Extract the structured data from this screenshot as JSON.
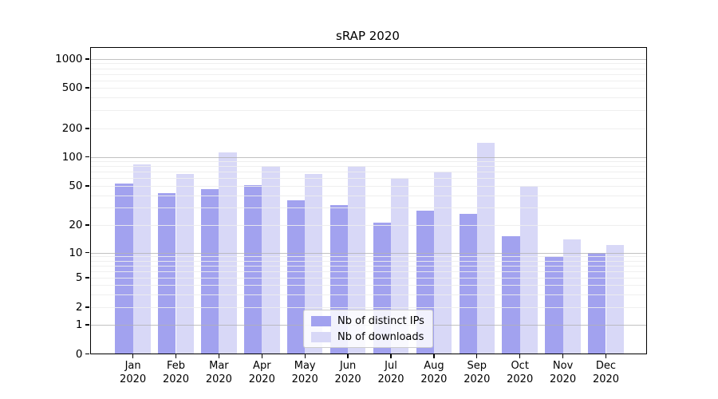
{
  "title": "sRAP 2020",
  "colors": {
    "ips_bar": "#a2a2ef",
    "downloads_bar": "#d8d8f7",
    "grid_major": "#b3b3b3",
    "grid_minor": "#ededed",
    "axis": "#000000",
    "legend_border": "#cccccc",
    "background": "#ffffff"
  },
  "legend": {
    "items": [
      {
        "label": "Nb of distinct IPs",
        "color_key": "ips_bar"
      },
      {
        "label": "Nb of downloads",
        "color_key": "downloads_bar"
      }
    ]
  },
  "y_axis": {
    "tick_labels": [
      "0",
      "1",
      "2",
      "5",
      "10",
      "20",
      "50",
      "100",
      "200",
      "500",
      "1000"
    ],
    "tick_values": [
      0,
      1,
      2,
      5,
      10,
      20,
      50,
      100,
      200,
      500,
      1000
    ]
  },
  "x_axis": {
    "categories": [
      {
        "month": "Jan",
        "year": "2020"
      },
      {
        "month": "Feb",
        "year": "2020"
      },
      {
        "month": "Mar",
        "year": "2020"
      },
      {
        "month": "Apr",
        "year": "2020"
      },
      {
        "month": "May",
        "year": "2020"
      },
      {
        "month": "Jun",
        "year": "2020"
      },
      {
        "month": "Jul",
        "year": "2020"
      },
      {
        "month": "Aug",
        "year": "2020"
      },
      {
        "month": "Sep",
        "year": "2020"
      },
      {
        "month": "Oct",
        "year": "2020"
      },
      {
        "month": "Nov",
        "year": "2020"
      },
      {
        "month": "Dec",
        "year": "2020"
      }
    ]
  },
  "chart_data": {
    "type": "bar",
    "title": "sRAP 2020",
    "xlabel": "",
    "ylabel": "",
    "y_scale": "symlog",
    "ylim": [
      0,
      1000
    ],
    "grid": true,
    "legend_position": "lower-center-inside",
    "categories": [
      "Jan 2020",
      "Feb 2020",
      "Mar 2020",
      "Apr 2020",
      "May 2020",
      "Jun 2020",
      "Jul 2020",
      "Aug 2020",
      "Sep 2020",
      "Oct 2020",
      "Nov 2020",
      "Dec 2020"
    ],
    "series": [
      {
        "name": "Nb of distinct IPs",
        "values": [
          53,
          42,
          46,
          51,
          36,
          32,
          21,
          28,
          26,
          15,
          9,
          10
        ]
      },
      {
        "name": "Nb of downloads",
        "values": [
          84,
          66,
          112,
          81,
          66,
          81,
          60,
          71,
          142,
          50,
          14,
          12
        ]
      }
    ]
  }
}
